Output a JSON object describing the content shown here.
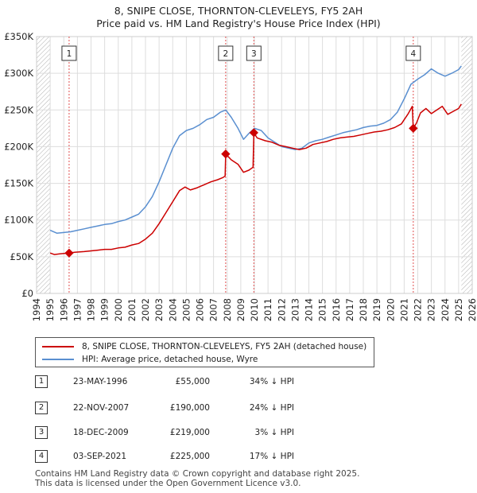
{
  "chart_data": {
    "type": "line",
    "title": "8, SNIPE CLOSE, THORNTON-CLEVELEYS, FY5 2AH",
    "subtitle": "Price paid vs. HM Land Registry's House Price Index (HPI)",
    "xlabel": "",
    "ylabel": "",
    "xlim": [
      1994,
      2026
    ],
    "ylim": [
      0,
      350000
    ],
    "x_ticks": [
      "1994",
      "1995",
      "1996",
      "1997",
      "1998",
      "1999",
      "2000",
      "2001",
      "2002",
      "2003",
      "2004",
      "2005",
      "2006",
      "2007",
      "2008",
      "2009",
      "2010",
      "2011",
      "2012",
      "2013",
      "2014",
      "2015",
      "2016",
      "2017",
      "2018",
      "2019",
      "2020",
      "2021",
      "2022",
      "2023",
      "2024",
      "2025",
      "2026"
    ],
    "y_ticks": [
      {
        "value": 0,
        "label": "£0"
      },
      {
        "value": 50000,
        "label": "£50K"
      },
      {
        "value": 100000,
        "label": "£100K"
      },
      {
        "value": 150000,
        "label": "£150K"
      },
      {
        "value": 200000,
        "label": "£200K"
      },
      {
        "value": 250000,
        "label": "£250K"
      },
      {
        "value": 300000,
        "label": "£300K"
      },
      {
        "value": 350000,
        "label": "£350K"
      }
    ],
    "grid": true,
    "data_start": 1995.0,
    "data_end": 2025.2,
    "series": [
      {
        "name": "8, SNIPE CLOSE, THORNTON-CLEVELEYS, FY5 2AH (detached house)",
        "color": "#cc0000",
        "x": [
          1995.0,
          1995.3,
          1995.7,
          1996.0,
          1996.39,
          1996.8,
          1997.5,
          1998.0,
          1998.5,
          1999.0,
          1999.5,
          2000.0,
          2000.5,
          2001.0,
          2001.5,
          2002.0,
          2002.5,
          2003.0,
          2003.5,
          2004.0,
          2004.5,
          2004.9,
          2005.3,
          2005.8,
          2006.3,
          2006.8,
          2007.3,
          2007.7,
          2007.85,
          2007.89,
          2008.3,
          2008.8,
          2009.2,
          2009.6,
          2009.9,
          2009.96,
          2010.2,
          2010.8,
          2011.3,
          2011.8,
          2012.3,
          2012.8,
          2013.3,
          2013.8,
          2014.3,
          2014.8,
          2015.3,
          2015.8,
          2016.3,
          2016.8,
          2017.3,
          2017.8,
          2018.3,
          2018.8,
          2019.3,
          2019.8,
          2020.3,
          2020.8,
          2021.3,
          2021.6,
          2021.67,
          2021.9,
          2022.2,
          2022.6,
          2023.0,
          2023.4,
          2023.8,
          2024.2,
          2024.6,
          2025.0,
          2025.2
        ],
        "y": [
          55000,
          53000,
          54000,
          54500,
          55000,
          56000,
          57000,
          58000,
          59000,
          60000,
          60000,
          62000,
          63000,
          66000,
          68000,
          74000,
          82000,
          95000,
          110000,
          125000,
          140000,
          145000,
          141000,
          144000,
          148000,
          152000,
          155000,
          158000,
          160000,
          190000,
          182000,
          176000,
          165000,
          168000,
          172000,
          219000,
          212000,
          208000,
          206000,
          202000,
          200000,
          198000,
          196000,
          198000,
          203000,
          205000,
          207000,
          210000,
          212000,
          213000,
          214000,
          216000,
          218000,
          220000,
          221000,
          223000,
          226000,
          231000,
          245000,
          255000,
          225000,
          232000,
          246000,
          252000,
          245000,
          250000,
          255000,
          244000,
          248000,
          252000,
          258000
        ]
      },
      {
        "name": "HPI: Average price, detached house, Wyre",
        "color": "#5a8fd0",
        "x": [
          1995.0,
          1995.5,
          1996.0,
          1996.5,
          1997.0,
          1997.5,
          1998.0,
          1998.5,
          1999.0,
          1999.5,
          2000.0,
          2000.5,
          2001.0,
          2001.5,
          2002.0,
          2002.5,
          2003.0,
          2003.5,
          2004.0,
          2004.5,
          2005.0,
          2005.5,
          2006.0,
          2006.5,
          2007.0,
          2007.5,
          2007.9,
          2008.3,
          2008.8,
          2009.2,
          2009.6,
          2010.0,
          2010.5,
          2011.0,
          2011.5,
          2012.0,
          2012.5,
          2013.0,
          2013.5,
          2014.0,
          2014.5,
          2015.0,
          2015.5,
          2016.0,
          2016.5,
          2017.0,
          2017.5,
          2018.0,
          2018.5,
          2019.0,
          2019.5,
          2020.0,
          2020.5,
          2021.0,
          2021.5,
          2022.0,
          2022.5,
          2023.0,
          2023.5,
          2024.0,
          2024.5,
          2025.0,
          2025.2
        ],
        "y": [
          86000,
          82000,
          83000,
          84000,
          86000,
          88000,
          90000,
          92000,
          94000,
          95000,
          98000,
          100000,
          104000,
          108000,
          118000,
          132000,
          152000,
          175000,
          198000,
          215000,
          222000,
          225000,
          230000,
          237000,
          240000,
          247000,
          250000,
          240000,
          225000,
          210000,
          218000,
          225000,
          222000,
          212000,
          206000,
          200000,
          198000,
          196000,
          198000,
          205000,
          208000,
          210000,
          213000,
          216000,
          219000,
          221000,
          223000,
          226000,
          228000,
          229000,
          232000,
          237000,
          247000,
          265000,
          285000,
          292000,
          298000,
          306000,
          300000,
          296000,
          300000,
          305000,
          310000
        ]
      }
    ],
    "transactions": [
      {
        "label": "1",
        "x": 1996.39,
        "price_value": 55000,
        "date": "23-MAY-1996",
        "price": "£55,000",
        "relation": "34% ↓ HPI"
      },
      {
        "label": "2",
        "x": 2007.89,
        "price_value": 190000,
        "date": "22-NOV-2007",
        "price": "£190,000",
        "relation": "24% ↓ HPI"
      },
      {
        "label": "3",
        "x": 2009.96,
        "price_value": 219000,
        "date": "18-DEC-2009",
        "price": "£219,000",
        "relation": "3% ↓ HPI"
      },
      {
        "label": "4",
        "x": 2021.67,
        "price_value": 225000,
        "date": "03-SEP-2021",
        "price": "£225,000",
        "relation": "17% ↓ HPI"
      }
    ]
  },
  "legend": {
    "property_label": "8, SNIPE CLOSE, THORNTON-CLEVELEYS, FY5 2AH (detached house)",
    "hpi_label": "HPI: Average price, detached house, Wyre"
  },
  "footer": {
    "line1": "Contains HM Land Registry data © Crown copyright and database right 2025.",
    "line2": "This data is licensed under the Open Government Licence v3.0."
  },
  "colors": {
    "property": "#cc0000",
    "hpi": "#5a8fd0",
    "grid": "#dddddd",
    "marker_line": "#e05050",
    "hatch": "#999999"
  }
}
